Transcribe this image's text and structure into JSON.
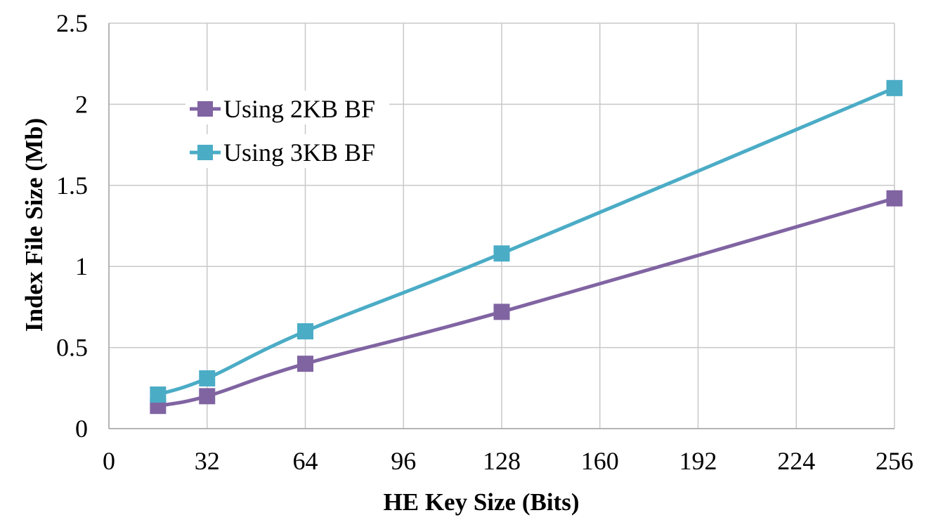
{
  "chart_data": {
    "type": "line",
    "title": "",
    "xlabel": "HE Key Size (Bits)",
    "ylabel": "Index File Size (Mb)",
    "xlim": [
      0,
      256
    ],
    "ylim": [
      0,
      2.5
    ],
    "xticks": [
      0,
      32,
      64,
      96,
      128,
      160,
      192,
      224,
      256
    ],
    "yticks": [
      0,
      0.5,
      1,
      1.5,
      2,
      2.5
    ],
    "ytick_labels": [
      "0",
      "0.5",
      "1",
      "1.5",
      "2",
      "2.5"
    ],
    "grid": true,
    "legend_position": "upper-left",
    "series": [
      {
        "name": "Using 2KB BF",
        "color": "#8064a2",
        "marker": "square",
        "x": [
          16,
          32,
          64,
          128,
          256
        ],
        "y": [
          0.14,
          0.2,
          0.4,
          0.72,
          1.42
        ]
      },
      {
        "name": "Using 3KB BF",
        "color": "#4bacc6",
        "marker": "square",
        "x": [
          16,
          32,
          64,
          128,
          256
        ],
        "y": [
          0.21,
          0.31,
          0.6,
          1.08,
          2.1
        ]
      }
    ]
  }
}
